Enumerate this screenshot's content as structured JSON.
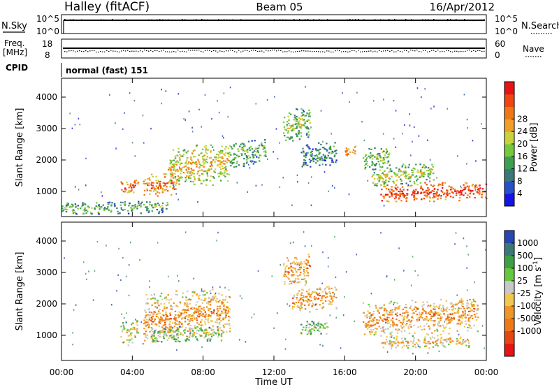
{
  "header": {
    "station": "Halley (fitACF)",
    "beam": "Beam 05",
    "date": "16/Apr/2012"
  },
  "parameters": {
    "nsky_label": "N.Sky",
    "nsky_ticks": [
      "10^5",
      "10^0"
    ],
    "nsearch_label": "N.Search",
    "freq_label": "Freq.",
    "freq_unit": "[MHz]",
    "freq_ticks": [
      "18",
      "8"
    ],
    "nave_label": "Nave",
    "nave_ticks": [
      "60",
      "0"
    ],
    "cpid_label": "CPID",
    "cpid_value": "normal (fast) 151"
  },
  "chart_data": [
    {
      "type": "heatmap",
      "panel": "power",
      "ylabel": "Slant Range [km]",
      "yticks": [
        1000,
        2000,
        3000,
        4000
      ],
      "ylim": [
        200,
        4600
      ],
      "colorbar_label": "Power [dB]",
      "colorbar_ticks": [
        4,
        8,
        12,
        16,
        20,
        24,
        28
      ],
      "colorscale": [
        "#1414e6",
        "#2850c8",
        "#3c7878",
        "#3ca050",
        "#78c83c",
        "#c8d23c",
        "#f0a028",
        "#f07814",
        "#f04614",
        "#e61414"
      ],
      "features": [
        {
          "t": [
            3.3,
            4.3
          ],
          "r": [
            950,
            1400
          ],
          "level": 0.85
        },
        {
          "t": [
            4.6,
            6.5
          ],
          "r": [
            850,
            1600
          ],
          "level": 0.8
        },
        {
          "t": [
            6.0,
            9.5
          ],
          "r": [
            1200,
            2500
          ],
          "level": 0.65
        },
        {
          "t": [
            9.5,
            11.5
          ],
          "r": [
            1800,
            2700
          ],
          "level": 0.45
        },
        {
          "t": [
            12.5,
            14.0
          ],
          "r": [
            2600,
            3700
          ],
          "level": 0.5
        },
        {
          "t": [
            13.5,
            15.5
          ],
          "r": [
            1800,
            2600
          ],
          "level": 0.35
        },
        {
          "t": [
            16.0,
            16.6
          ],
          "r": [
            2100,
            2500
          ],
          "level": 0.75
        },
        {
          "t": [
            17.0,
            18.5
          ],
          "r": [
            1700,
            2400
          ],
          "level": 0.5
        },
        {
          "t": [
            18.0,
            24.0
          ],
          "r": [
            700,
            1300
          ],
          "level": 0.9
        },
        {
          "t": [
            17.5,
            21.0
          ],
          "r": [
            1200,
            1900
          ],
          "level": 0.55
        },
        {
          "t": [
            0.0,
            6.0
          ],
          "r": [
            300,
            700
          ],
          "level": 0.45
        }
      ]
    },
    {
      "type": "heatmap",
      "panel": "velocity",
      "ylabel": "Slant Range [km]",
      "yticks": [
        1000,
        2000,
        3000,
        4000
      ],
      "ylim": [
        200,
        4600
      ],
      "xlabel": "Time UT",
      "xticks": [
        "00:00",
        "04:00",
        "08:00",
        "12:00",
        "16:00",
        "20:00",
        "00:00"
      ],
      "xlim": [
        0,
        24
      ],
      "colorbar_label": "Velocity [m s^-1]",
      "colorbar_ticks": [
        1000,
        500,
        100,
        25,
        -25,
        -100,
        -500,
        -1000
      ],
      "colorscale": [
        "#2846b4",
        "#3c7878",
        "#3ca046",
        "#64c83c",
        "#c8c8c8",
        "#f0c850",
        "#f09628",
        "#f07814",
        "#e64614",
        "#e61414"
      ],
      "features": [
        {
          "t": [
            3.3,
            4.3
          ],
          "r": [
            700,
            1500
          ],
          "level": 0.55
        },
        {
          "t": [
            4.6,
            9.5
          ],
          "r": [
            800,
            2500
          ],
          "level": 0.7
        },
        {
          "t": [
            5.0,
            9.0
          ],
          "r": [
            800,
            1300
          ],
          "level": 0.45
        },
        {
          "t": [
            12.5,
            14.0
          ],
          "r": [
            2600,
            3600
          ],
          "level": 0.72
        },
        {
          "t": [
            13.0,
            15.5
          ],
          "r": [
            1800,
            2600
          ],
          "level": 0.72
        },
        {
          "t": [
            13.5,
            15.0
          ],
          "r": [
            1000,
            1500
          ],
          "level": 0.45
        },
        {
          "t": [
            17.0,
            23.5
          ],
          "r": [
            1000,
            2200
          ],
          "level": 0.7
        },
        {
          "t": [
            18.0,
            23.0
          ],
          "r": [
            600,
            1000
          ],
          "level": 0.62
        }
      ]
    }
  ]
}
